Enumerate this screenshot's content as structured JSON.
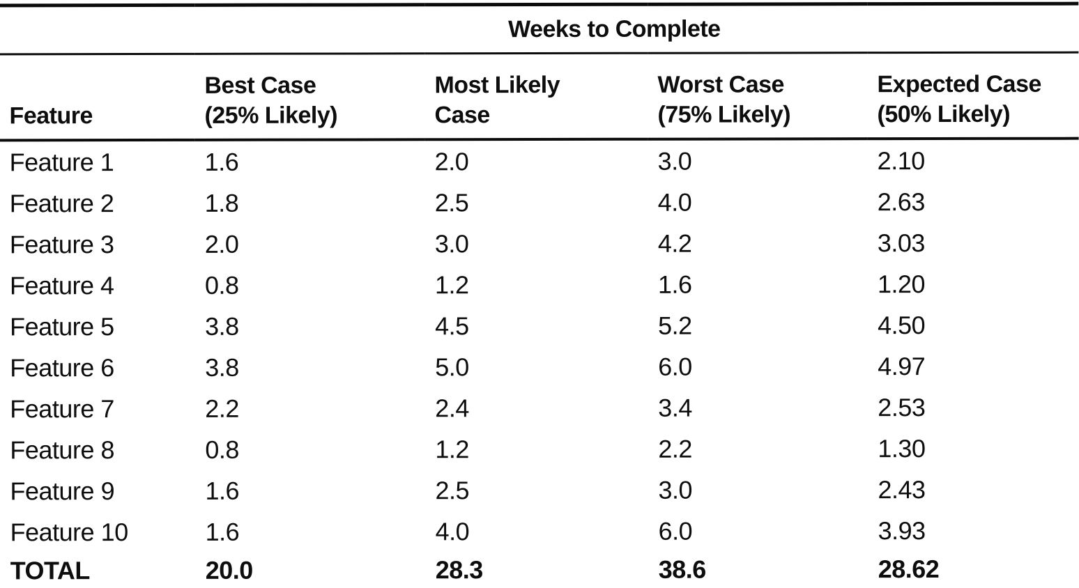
{
  "title": "Weeks to Complete",
  "columns": [
    {
      "line1": "Feature",
      "line2": ""
    },
    {
      "line1": "Best Case",
      "line2": "(25% Likely)"
    },
    {
      "line1": "Most Likely",
      "line2": "Case"
    },
    {
      "line1": "Worst Case",
      "line2": "(75% Likely)"
    },
    {
      "line1": "Expected Case",
      "line2": "(50% Likely)"
    }
  ],
  "rows": [
    {
      "feature": "Feature 1",
      "best": "1.6",
      "most_likely": "2.0",
      "worst": "3.0",
      "expected": "2.10"
    },
    {
      "feature": "Feature 2",
      "best": "1.8",
      "most_likely": "2.5",
      "worst": "4.0",
      "expected": "2.63"
    },
    {
      "feature": "Feature 3",
      "best": "2.0",
      "most_likely": "3.0",
      "worst": "4.2",
      "expected": "3.03"
    },
    {
      "feature": "Feature 4",
      "best": "0.8",
      "most_likely": "1.2",
      "worst": "1.6",
      "expected": "1.20"
    },
    {
      "feature": "Feature 5",
      "best": "3.8",
      "most_likely": "4.5",
      "worst": "5.2",
      "expected": "4.50"
    },
    {
      "feature": "Feature 6",
      "best": "3.8",
      "most_likely": "5.0",
      "worst": "6.0",
      "expected": "4.97"
    },
    {
      "feature": "Feature 7",
      "best": "2.2",
      "most_likely": "2.4",
      "worst": "3.4",
      "expected": "2.53"
    },
    {
      "feature": "Feature 8",
      "best": "0.8",
      "most_likely": "1.2",
      "worst": "2.2",
      "expected": "1.30"
    },
    {
      "feature": "Feature 9",
      "best": "1.6",
      "most_likely": "2.5",
      "worst": "3.0",
      "expected": "2.43"
    },
    {
      "feature": "Feature 10",
      "best": "1.6",
      "most_likely": "4.0",
      "worst": "6.0",
      "expected": "3.93"
    }
  ],
  "total": {
    "feature": "TOTAL",
    "best": "20.0",
    "most_likely": "28.3",
    "worst": "38.6",
    "expected": "28.62"
  },
  "colors": {
    "text": "#0d0d0d",
    "background": "#ffffff",
    "rule": "#0b0b0b"
  },
  "chart_data": {
    "type": "table",
    "title": "Weeks to Complete",
    "columns": [
      "Feature",
      "Best Case (25% Likely)",
      "Most Likely Case",
      "Worst Case (75% Likely)",
      "Expected Case (50% Likely)"
    ],
    "rows": [
      [
        "Feature 1",
        1.6,
        2.0,
        3.0,
        2.1
      ],
      [
        "Feature 2",
        1.8,
        2.5,
        4.0,
        2.63
      ],
      [
        "Feature 3",
        2.0,
        3.0,
        4.2,
        3.03
      ],
      [
        "Feature 4",
        0.8,
        1.2,
        1.6,
        1.2
      ],
      [
        "Feature 5",
        3.8,
        4.5,
        5.2,
        4.5
      ],
      [
        "Feature 6",
        3.8,
        5.0,
        6.0,
        4.97
      ],
      [
        "Feature 7",
        2.2,
        2.4,
        3.4,
        2.53
      ],
      [
        "Feature 8",
        0.8,
        1.2,
        2.2,
        1.3
      ],
      [
        "Feature 9",
        1.6,
        2.5,
        3.0,
        2.43
      ],
      [
        "Feature 10",
        1.6,
        4.0,
        6.0,
        3.93
      ],
      [
        "TOTAL",
        20.0,
        28.3,
        38.6,
        28.62
      ]
    ]
  }
}
